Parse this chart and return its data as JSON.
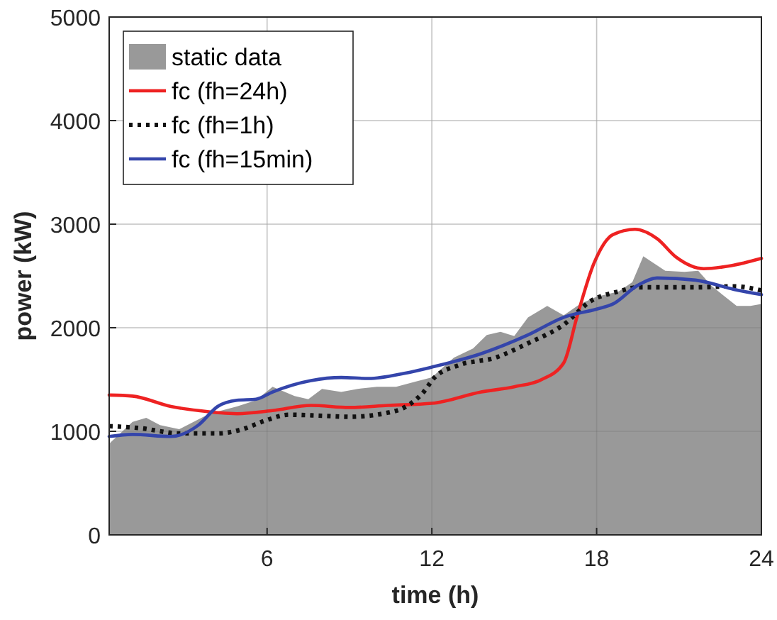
{
  "chart_data": {
    "type": "line",
    "xlabel": "time (h)",
    "ylabel": "power (kW)",
    "xlim": [
      0.25,
      24
    ],
    "xticks": [
      6,
      12,
      18,
      24
    ],
    "ylim": [
      0,
      5000
    ],
    "yticks": [
      0,
      1000,
      2000,
      3000,
      4000,
      5000
    ],
    "grid": true,
    "legend": "top left",
    "series": [
      {
        "name": "static data",
        "type": "area",
        "color": "#999999",
        "x": [
          0.25,
          1.1,
          1.6,
          2.1,
          2.8,
          3.9,
          4.9,
          5.6,
          6.2,
          7.0,
          7.5,
          8.0,
          8.7,
          9.3,
          10.0,
          10.7,
          11.4,
          12.0,
          12.8,
          13.5,
          14.0,
          14.5,
          15.0,
          15.5,
          16.2,
          16.8,
          17.4,
          18.0,
          18.8,
          19.3,
          19.7,
          20.5,
          21.2,
          21.7,
          22.2,
          23.1,
          23.6,
          24
        ],
        "values": [
          880,
          1090,
          1130,
          1060,
          1020,
          1170,
          1240,
          1300,
          1430,
          1340,
          1310,
          1410,
          1380,
          1410,
          1430,
          1430,
          1480,
          1520,
          1710,
          1800,
          1930,
          1960,
          1920,
          2100,
          2210,
          2120,
          2230,
          2300,
          2350,
          2440,
          2690,
          2550,
          2540,
          2550,
          2400,
          2210,
          2210,
          2230
        ]
      },
      {
        "name": "fc (fh=24h)",
        "color": "#ee2222",
        "line_style": "solid",
        "x": [
          0.25,
          1.1,
          2.5,
          3.5,
          4.9,
          6.2,
          7.6,
          9.0,
          10.4,
          12.0,
          13.8,
          15.0,
          16.0,
          16.8,
          17.3,
          17.9,
          18.6,
          19.4,
          20.2,
          20.9,
          21.9,
          22.9,
          24
        ],
        "values": [
          1350,
          1340,
          1240,
          1200,
          1170,
          1200,
          1250,
          1230,
          1250,
          1270,
          1380,
          1430,
          1500,
          1660,
          2120,
          2620,
          2900,
          2950,
          2860,
          2680,
          2570,
          2600,
          2670
        ]
      },
      {
        "name": "fc (fh=1h)",
        "color": "#111111",
        "line_style": "dotted",
        "x": [
          0.25,
          1.4,
          2.8,
          4.2,
          5.1,
          5.9,
          6.8,
          8.0,
          9.0,
          10.4,
          11.0,
          11.7,
          12.1,
          13.0,
          14.3,
          15.5,
          16.8,
          17.8,
          18.8,
          19.5,
          21.6,
          23.0,
          24
        ],
        "values": [
          1050,
          1030,
          980,
          980,
          1020,
          1100,
          1160,
          1150,
          1140,
          1180,
          1230,
          1380,
          1520,
          1640,
          1710,
          1850,
          2030,
          2260,
          2350,
          2390,
          2390,
          2400,
          2360
        ]
      },
      {
        "name": "fc (fh=15min)",
        "color": "#3445ab",
        "line_style": "solid",
        "x": [
          0.25,
          1.1,
          2.5,
          3.5,
          4.2,
          4.9,
          5.6,
          6.2,
          7.6,
          8.7,
          9.7,
          11.0,
          12.0,
          13.8,
          15.5,
          16.8,
          18.0,
          18.6,
          19.5,
          20.2,
          21.6,
          23.0,
          24
        ],
        "values": [
          950,
          970,
          950,
          1060,
          1240,
          1300,
          1310,
          1380,
          1490,
          1520,
          1510,
          1560,
          1620,
          1750,
          1930,
          2100,
          2180,
          2230,
          2410,
          2480,
          2460,
          2370,
          2320
        ]
      }
    ]
  }
}
